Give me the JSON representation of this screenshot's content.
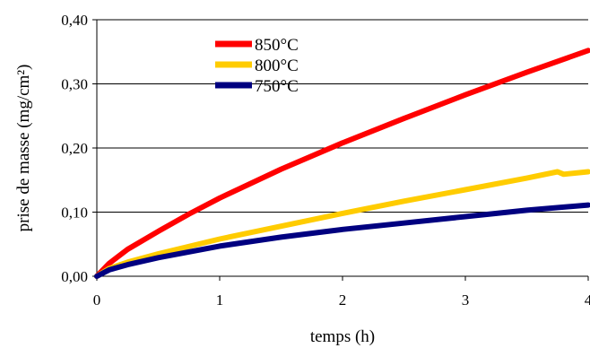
{
  "chart_data": {
    "type": "line",
    "xlabel": "temps (h)",
    "ylabel": "prise de masse (mg/cm²)",
    "xlim": [
      0,
      4
    ],
    "ylim": [
      0,
      0.4
    ],
    "x_ticks": [
      0,
      1,
      2,
      3,
      4
    ],
    "x_tick_labels": [
      "0",
      "1",
      "2",
      "3",
      "4"
    ],
    "y_ticks": [
      0,
      0.1,
      0.2,
      0.3,
      0.4
    ],
    "y_tick_labels": [
      "0,00",
      "0,10",
      "0,20",
      "0,30",
      "0,40"
    ],
    "grid": "horizontal",
    "legend_position": "top-center",
    "series": [
      {
        "name": "850°C",
        "color": "#ff0000",
        "x": [
          0,
          0.1,
          0.25,
          0.5,
          0.75,
          1,
          1.5,
          2,
          2.5,
          3,
          3.5,
          4
        ],
        "values": [
          0,
          0.02,
          0.042,
          0.07,
          0.097,
          0.122,
          0.167,
          0.208,
          0.246,
          0.283,
          0.318,
          0.352
        ]
      },
      {
        "name": "800°C",
        "color": "#ffcc00",
        "x": [
          0,
          0.1,
          0.25,
          0.5,
          1,
          1.5,
          2,
          2.5,
          3,
          3.5,
          3.75,
          3.8,
          4
        ],
        "values": [
          0,
          0.012,
          0.022,
          0.035,
          0.058,
          0.078,
          0.098,
          0.117,
          0.135,
          0.153,
          0.163,
          0.159,
          0.163
        ]
      },
      {
        "name": "750°C",
        "color": "#000080",
        "x": [
          0,
          0.1,
          0.25,
          0.5,
          1,
          1.5,
          2,
          2.5,
          3,
          3.5,
          4
        ],
        "values": [
          0,
          0.01,
          0.018,
          0.029,
          0.047,
          0.061,
          0.073,
          0.083,
          0.093,
          0.103,
          0.111
        ]
      }
    ]
  }
}
